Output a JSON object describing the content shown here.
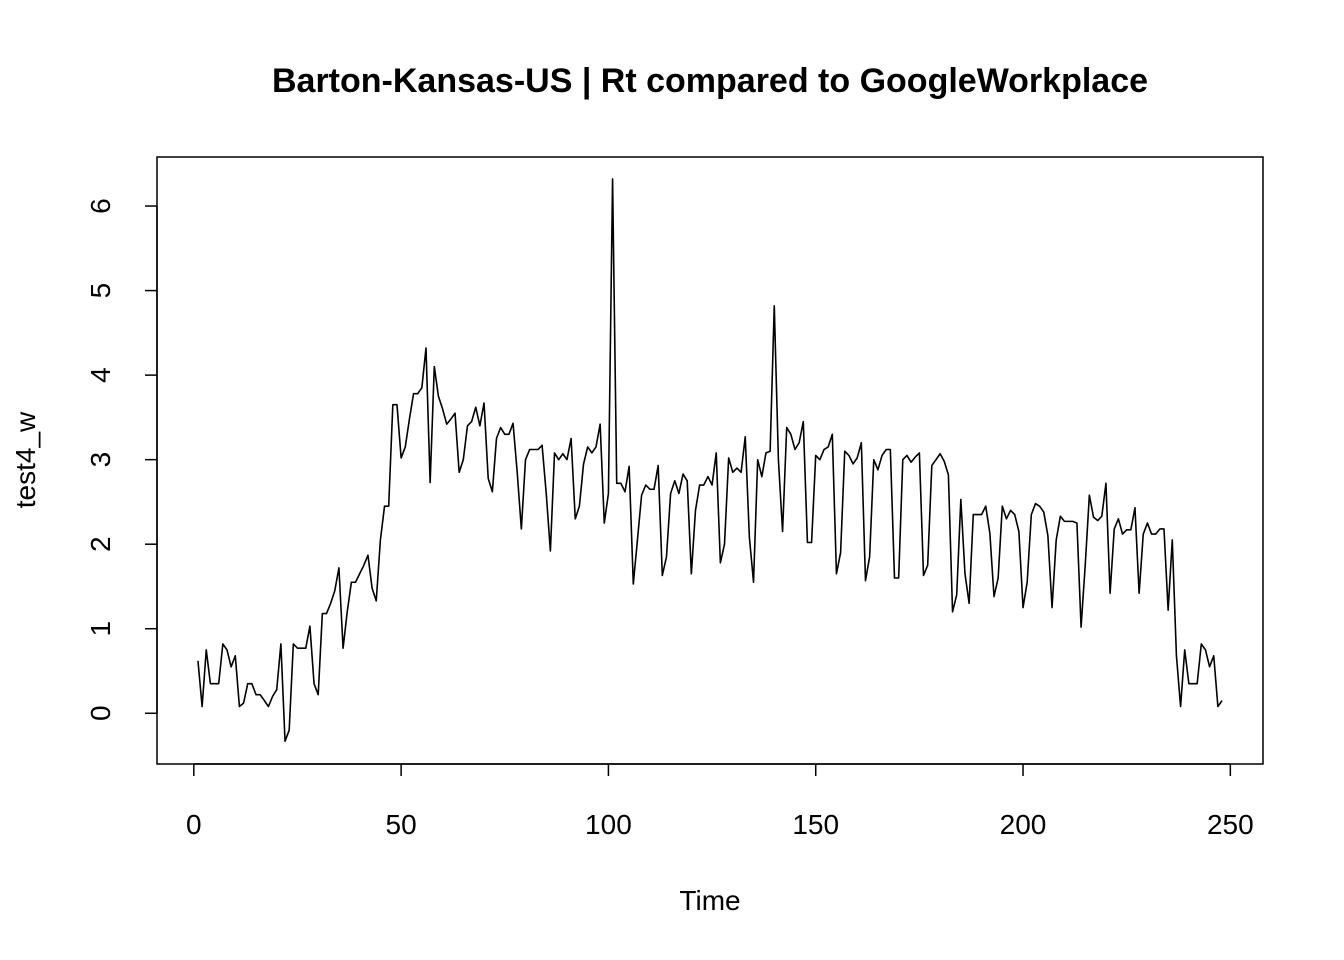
{
  "chart_data": {
    "type": "line",
    "title": "Barton-Kansas-US | Rt compared to GoogleWorkplace",
    "xlabel": "Time",
    "ylabel": "test4_w",
    "color": "#000000",
    "xlim": [
      -8.88,
      257.88
    ],
    "ylim": [
      -0.6,
      6.58
    ],
    "xticks": [
      0,
      50,
      100,
      150,
      200,
      250
    ],
    "yticks": [
      0,
      1,
      2,
      3,
      4,
      5,
      6
    ],
    "x": [
      1,
      2,
      3,
      4,
      5,
      6,
      7,
      8,
      9,
      10,
      11,
      12,
      13,
      14,
      15,
      16,
      17,
      18,
      19,
      20,
      21,
      22,
      23,
      24,
      25,
      26,
      27,
      28,
      29,
      30,
      31,
      32,
      33,
      34,
      35,
      36,
      37,
      38,
      39,
      40,
      41,
      42,
      43,
      44,
      45,
      46,
      47,
      48,
      49,
      50,
      51,
      52,
      53,
      54,
      55,
      56,
      57,
      58,
      59,
      60,
      61,
      62,
      63,
      64,
      65,
      66,
      67,
      68,
      69,
      70,
      71,
      72,
      73,
      74,
      75,
      76,
      77,
      78,
      79,
      80,
      81,
      82,
      83,
      84,
      85,
      86,
      87,
      88,
      89,
      90,
      91,
      92,
      93,
      94,
      95,
      96,
      97,
      98,
      99,
      100,
      101,
      102,
      103,
      104,
      105,
      106,
      107,
      108,
      109,
      110,
      111,
      112,
      113,
      114,
      115,
      116,
      117,
      118,
      119,
      120,
      121,
      122,
      123,
      124,
      125,
      126,
      127,
      128,
      129,
      130,
      131,
      132,
      133,
      134,
      135,
      136,
      137,
      138,
      139,
      140,
      141,
      142,
      143,
      144,
      145,
      146,
      147,
      148,
      149,
      150,
      151,
      152,
      153,
      154,
      155,
      156,
      157,
      158,
      159,
      160,
      161,
      162,
      163,
      164,
      165,
      166,
      167,
      168,
      169,
      170,
      171,
      172,
      173,
      174,
      175,
      176,
      177,
      178,
      179,
      180,
      181,
      182,
      183,
      184,
      185,
      186,
      187,
      188,
      189,
      190,
      191,
      192,
      193,
      194,
      195,
      196,
      197,
      198,
      199,
      200,
      201,
      202,
      203,
      204,
      205,
      206,
      207,
      208,
      209,
      210,
      211,
      212,
      213,
      214,
      215,
      216,
      217,
      218,
      219,
      220,
      221,
      222,
      223,
      224,
      225,
      226,
      227,
      228,
      229,
      230,
      231,
      232,
      233,
      234,
      235,
      236,
      237,
      238,
      239,
      240,
      241,
      242,
      243,
      244,
      245,
      246,
      247,
      248
    ],
    "values": [
      0.62,
      0.08,
      0.75,
      0.35,
      0.35,
      0.35,
      0.82,
      0.75,
      0.55,
      0.68,
      0.08,
      0.12,
      0.35,
      0.35,
      0.22,
      0.22,
      0.15,
      0.08,
      0.2,
      0.28,
      0.82,
      -0.33,
      -0.2,
      0.82,
      0.77,
      0.77,
      0.77,
      1.03,
      0.35,
      0.22,
      1.18,
      1.18,
      1.3,
      1.45,
      1.72,
      0.77,
      1.2,
      1.55,
      1.55,
      1.65,
      1.75,
      1.87,
      1.48,
      1.33,
      2.05,
      2.45,
      2.45,
      3.65,
      3.65,
      3.02,
      3.15,
      3.48,
      3.78,
      3.78,
      3.85,
      4.32,
      2.73,
      4.1,
      3.75,
      3.6,
      3.42,
      3.48,
      3.55,
      2.85,
      3.0,
      3.4,
      3.45,
      3.62,
      3.4,
      3.67,
      2.78,
      2.62,
      3.25,
      3.38,
      3.3,
      3.3,
      3.43,
      2.85,
      2.18,
      3.0,
      3.12,
      3.12,
      3.12,
      3.17,
      2.6,
      1.92,
      3.08,
      3.0,
      3.07,
      3.0,
      3.25,
      2.3,
      2.45,
      2.95,
      3.15,
      3.08,
      3.15,
      3.42,
      2.25,
      2.6,
      6.32,
      2.72,
      2.72,
      2.62,
      2.92,
      1.53,
      2.05,
      2.58,
      2.7,
      2.65,
      2.65,
      2.93,
      1.63,
      1.85,
      2.6,
      2.75,
      2.6,
      2.83,
      2.75,
      1.65,
      2.4,
      2.7,
      2.7,
      2.8,
      2.7,
      3.08,
      1.78,
      2.0,
      3.02,
      2.85,
      2.9,
      2.85,
      3.27,
      2.08,
      1.55,
      3.0,
      2.8,
      3.08,
      3.1,
      4.82,
      3.0,
      2.15,
      3.38,
      3.3,
      3.12,
      3.2,
      3.45,
      2.02,
      2.02,
      3.05,
      3.0,
      3.12,
      3.15,
      3.3,
      1.65,
      1.9,
      3.1,
      3.05,
      2.95,
      3.02,
      3.2,
      1.57,
      1.85,
      3.0,
      2.88,
      3.05,
      3.12,
      3.12,
      1.6,
      1.6,
      3.0,
      3.05,
      2.97,
      3.03,
      3.08,
      1.63,
      1.75,
      2.93,
      3.0,
      3.07,
      2.98,
      2.82,
      1.2,
      1.4,
      2.53,
      1.65,
      1.3,
      2.35,
      2.35,
      2.35,
      2.45,
      2.13,
      1.38,
      1.6,
      2.45,
      2.3,
      2.4,
      2.35,
      2.15,
      1.25,
      1.55,
      2.35,
      2.48,
      2.45,
      2.38,
      2.1,
      1.25,
      2.05,
      2.33,
      2.27,
      2.27,
      2.27,
      2.25,
      1.02,
      1.75,
      2.58,
      2.32,
      2.28,
      2.33,
      2.72,
      1.42,
      2.18,
      2.3,
      2.12,
      2.17,
      2.17,
      2.43,
      1.42,
      2.12,
      2.25,
      2.12,
      2.12,
      2.18,
      2.18,
      1.22,
      2.05,
      0.68,
      0.08,
      0.75,
      0.35,
      0.35,
      0.35,
      0.82,
      0.75,
      0.55,
      0.68,
      0.08,
      0.15
    ]
  }
}
